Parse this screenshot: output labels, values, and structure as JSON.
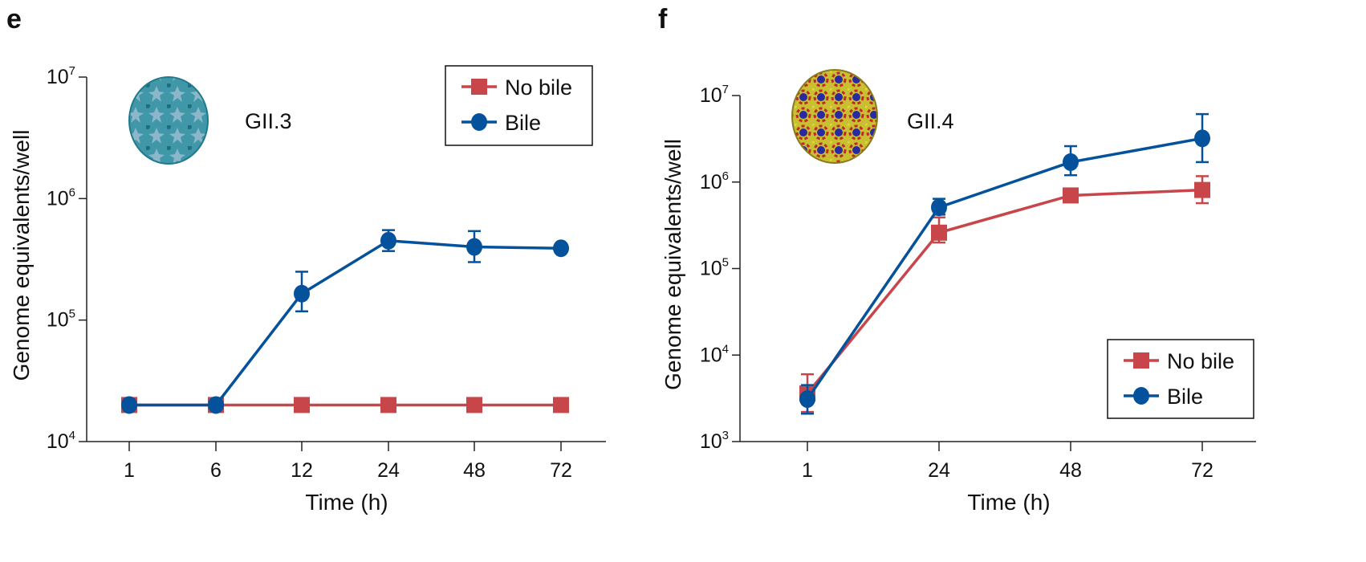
{
  "colors": {
    "no_bile": "#c8454a",
    "bile": "#04529b",
    "axis": "#222222"
  },
  "chart_data": [
    {
      "panel_label": "e",
      "type": "line",
      "annotation": "GII.3",
      "image_icon": "gii3-virus-particle",
      "xlabel": "Time (h)",
      "ylabel": "Genome equivalents/well",
      "x_scale": "categorical",
      "y_scale": "log",
      "ylim": [
        10000,
        10000000
      ],
      "yticks": [
        {
          "base": "10",
          "exp": "4",
          "value": 10000
        },
        {
          "base": "10",
          "exp": "5",
          "value": 100000
        },
        {
          "base": "10",
          "exp": "6",
          "value": 1000000
        },
        {
          "base": "10",
          "exp": "7",
          "value": 10000000
        }
      ],
      "categories": [
        "1",
        "6",
        "12",
        "24",
        "48",
        "72"
      ],
      "legend": {
        "placement": "top-right"
      },
      "series": [
        {
          "name": "No bile",
          "marker": "square",
          "color_key": "no_bile",
          "values": [
            20000,
            20000,
            20000,
            20000,
            20000,
            20000
          ],
          "err_low": [
            null,
            null,
            null,
            null,
            null,
            null
          ],
          "err_high": [
            null,
            null,
            null,
            null,
            null,
            null
          ]
        },
        {
          "name": "Bile",
          "marker": "circle",
          "color_key": "bile",
          "values": [
            20000,
            20000,
            165000,
            450000,
            400000,
            390000
          ],
          "err_low": [
            null,
            null,
            118000,
            370000,
            300000,
            null
          ],
          "err_high": [
            null,
            null,
            250000,
            550000,
            540000,
            null
          ]
        }
      ]
    },
    {
      "panel_label": "f",
      "type": "line",
      "annotation": "GII.4",
      "image_icon": "gii4-virus-particle",
      "xlabel": "Time (h)",
      "ylabel": "Genome equivalents/well",
      "x_scale": "categorical",
      "y_scale": "log",
      "ylim": [
        1000,
        10000000
      ],
      "yticks": [
        {
          "base": "10",
          "exp": "3",
          "value": 1000
        },
        {
          "base": "10",
          "exp": "4",
          "value": 10000
        },
        {
          "base": "10",
          "exp": "5",
          "value": 100000
        },
        {
          "base": "10",
          "exp": "6",
          "value": 1000000
        },
        {
          "base": "10",
          "exp": "7",
          "value": 10000000
        }
      ],
      "categories": [
        "1",
        "24",
        "48",
        "72"
      ],
      "legend": {
        "placement": "bottom-right"
      },
      "series": [
        {
          "name": "No bile",
          "marker": "square",
          "color_key": "no_bile",
          "values": [
            3600,
            260000,
            700000,
            810000
          ],
          "err_low": [
            2200,
            200000,
            null,
            570000
          ],
          "err_high": [
            6000,
            390000,
            null,
            1170000
          ]
        },
        {
          "name": "Bile",
          "marker": "circle",
          "color_key": "bile",
          "values": [
            3100,
            510000,
            1700000,
            3200000
          ],
          "err_low": [
            2100,
            420000,
            1200000,
            1700000
          ],
          "err_high": [
            4500,
            640000,
            2600000,
            6100000
          ]
        }
      ]
    }
  ]
}
